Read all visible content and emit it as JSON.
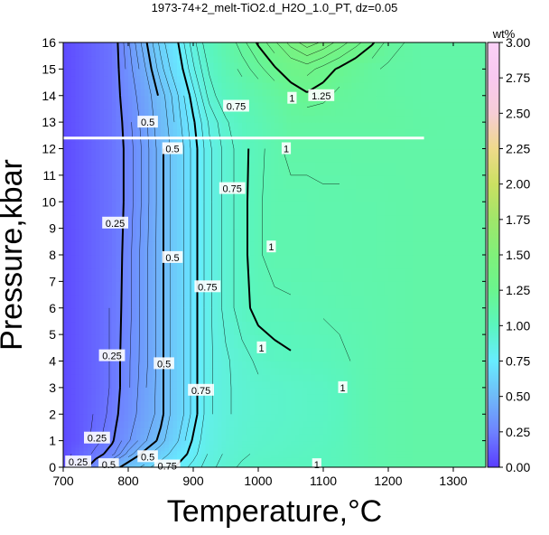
{
  "chart_data": {
    "type": "heatmap",
    "title": "1973-74+2_melt-TiO2.d_H2O_1.0_PT, dz=0.05",
    "xlabel": "Temperature,°C",
    "ylabel": "Pressure,kbar",
    "xlim": [
      700,
      1350
    ],
    "ylim": [
      0,
      16
    ],
    "x_ticks": [
      700,
      800,
      900,
      1000,
      1100,
      1200,
      1300
    ],
    "y_ticks": [
      0,
      1,
      2,
      3,
      4,
      5,
      6,
      7,
      8,
      9,
      10,
      11,
      12,
      13,
      14,
      15,
      16
    ],
    "colorbar": {
      "label": "wt%",
      "range": [
        0,
        3
      ],
      "ticks": [
        "0.00",
        "0.25",
        "0.50",
        "0.75",
        "1.00",
        "1.25",
        "1.50",
        "1.75",
        "2.00",
        "2.25",
        "2.50",
        "2.75",
        "3.00"
      ],
      "stops": [
        {
          "v": 0.0,
          "color": "#5a3dff"
        },
        {
          "v": 0.25,
          "color": "#6e82ff"
        },
        {
          "v": 0.5,
          "color": "#6fbaf8"
        },
        {
          "v": 0.75,
          "color": "#67ecff"
        },
        {
          "v": 1.0,
          "color": "#5af5be"
        },
        {
          "v": 1.25,
          "color": "#6af58e"
        },
        {
          "v": 1.5,
          "color": "#80f07a"
        },
        {
          "v": 1.75,
          "color": "#a0e66a"
        },
        {
          "v": 2.0,
          "color": "#cbe062"
        },
        {
          "v": 2.25,
          "color": "#efd98a"
        },
        {
          "v": 2.5,
          "color": "#f6cdd6"
        },
        {
          "v": 2.75,
          "color": "#f8c8f0"
        },
        {
          "v": 3.0,
          "color": "#fad0f6"
        }
      ]
    },
    "field": {
      "x": [
        700,
        725,
        750,
        775,
        800,
        825,
        850,
        875,
        900,
        925,
        950,
        975,
        1000,
        1025,
        1050,
        1075,
        1100,
        1125,
        1150,
        1175,
        1200,
        1250,
        1300,
        1350
      ],
      "y": [
        0,
        0.5,
        1,
        2,
        3,
        4,
        6,
        8,
        10,
        12,
        13,
        14,
        15,
        16
      ],
      "z": [
        [
          0.05,
          0.2,
          0.3,
          0.45,
          0.55,
          0.62,
          0.7,
          0.76,
          0.82,
          0.88,
          0.93,
          0.96,
          0.98,
          0.99,
          1.0,
          1.0,
          1.0,
          1.02,
          1.05,
          1.08,
          1.1,
          1.12,
          1.12,
          1.12
        ],
        [
          0.05,
          0.15,
          0.22,
          0.28,
          0.42,
          0.52,
          0.6,
          0.7,
          0.78,
          0.86,
          0.91,
          0.94,
          0.96,
          0.97,
          0.98,
          0.99,
          1.0,
          1.02,
          1.05,
          1.08,
          1.1,
          1.12,
          1.12,
          1.12
        ],
        [
          0.05,
          0.1,
          0.18,
          0.24,
          0.34,
          0.44,
          0.52,
          0.64,
          0.76,
          0.85,
          0.9,
          0.93,
          0.95,
          0.96,
          0.97,
          0.98,
          0.99,
          1.01,
          1.05,
          1.08,
          1.1,
          1.12,
          1.12,
          1.12
        ],
        [
          0.05,
          0.1,
          0.16,
          0.22,
          0.3,
          0.4,
          0.48,
          0.6,
          0.72,
          0.84,
          0.89,
          0.92,
          0.94,
          0.95,
          0.96,
          0.97,
          0.98,
          1.0,
          1.05,
          1.08,
          1.1,
          1.12,
          1.12,
          1.12
        ],
        [
          0.05,
          0.1,
          0.15,
          0.21,
          0.29,
          0.39,
          0.48,
          0.6,
          0.72,
          0.84,
          0.89,
          0.92,
          0.94,
          0.95,
          0.96,
          0.97,
          0.98,
          1.0,
          1.05,
          1.08,
          1.1,
          1.12,
          1.12,
          1.12
        ],
        [
          0.05,
          0.1,
          0.15,
          0.21,
          0.29,
          0.38,
          0.48,
          0.6,
          0.72,
          0.84,
          0.89,
          0.93,
          0.96,
          0.98,
          0.99,
          1.0,
          1.01,
          1.03,
          1.06,
          1.08,
          1.1,
          1.12,
          1.12,
          1.12
        ],
        [
          0.05,
          0.1,
          0.15,
          0.21,
          0.28,
          0.38,
          0.48,
          0.6,
          0.72,
          0.84,
          0.92,
          0.98,
          1.02,
          1.03,
          1.04,
          1.05,
          1.06,
          1.07,
          1.08,
          1.09,
          1.1,
          1.12,
          1.12,
          1.12
        ],
        [
          0.05,
          0.1,
          0.15,
          0.2,
          0.28,
          0.38,
          0.48,
          0.6,
          0.72,
          0.84,
          0.92,
          0.98,
          1.04,
          1.08,
          1.08,
          1.08,
          1.09,
          1.09,
          1.1,
          1.1,
          1.11,
          1.12,
          1.12,
          1.12
        ],
        [
          0.05,
          0.1,
          0.15,
          0.2,
          0.27,
          0.37,
          0.48,
          0.6,
          0.72,
          0.84,
          0.92,
          0.98,
          1.04,
          1.08,
          1.08,
          1.08,
          1.09,
          1.09,
          1.1,
          1.1,
          1.11,
          1.12,
          1.12,
          1.12
        ],
        [
          0.05,
          0.1,
          0.15,
          0.2,
          0.27,
          0.37,
          0.48,
          0.6,
          0.72,
          0.84,
          0.92,
          0.98,
          1.03,
          1.08,
          1.12,
          1.12,
          1.12,
          1.12,
          1.12,
          1.12,
          1.12,
          1.12,
          1.12,
          1.12
        ],
        [
          0.05,
          0.1,
          0.15,
          0.2,
          0.28,
          0.38,
          0.5,
          0.62,
          0.74,
          0.86,
          0.94,
          1.0,
          1.05,
          1.1,
          1.15,
          1.15,
          1.15,
          1.15,
          1.15,
          1.15,
          1.15,
          1.13,
          1.12,
          1.12
        ],
        [
          0.05,
          0.1,
          0.15,
          0.2,
          0.3,
          0.4,
          0.52,
          0.64,
          0.78,
          0.92,
          1.0,
          1.05,
          1.1,
          1.15,
          1.2,
          1.24,
          1.22,
          1.18,
          1.16,
          1.15,
          1.14,
          1.12,
          1.12,
          1.12
        ],
        [
          0.05,
          0.1,
          0.15,
          0.2,
          0.32,
          0.44,
          0.58,
          0.7,
          0.84,
          0.96,
          1.05,
          1.12,
          1.18,
          1.24,
          1.3,
          1.32,
          1.28,
          1.24,
          1.2,
          1.16,
          1.14,
          1.12,
          1.12,
          1.12
        ],
        [
          0.05,
          0.1,
          0.15,
          0.2,
          0.34,
          0.48,
          0.62,
          0.74,
          0.88,
          1.0,
          1.1,
          1.18,
          1.26,
          1.34,
          1.42,
          1.48,
          1.44,
          1.38,
          1.32,
          1.26,
          1.18,
          1.12,
          1.12,
          1.12
        ]
      ]
    },
    "levels": [
      0.05,
      0.1,
      0.15,
      0.2,
      0.25,
      0.3,
      0.35,
      0.4,
      0.45,
      0.5,
      0.55,
      0.6,
      0.65,
      0.7,
      0.75,
      0.8,
      0.85,
      0.9,
      0.95,
      1.0,
      1.05,
      1.1,
      1.15,
      1.2,
      1.25,
      1.3,
      1.35,
      1.4,
      1.45
    ],
    "major_levels": [
      0.25,
      0.5,
      0.75,
      1.0,
      1.25
    ],
    "contour_labels": [
      {
        "text": "0.25",
        "x": 780,
        "y": 9.2
      },
      {
        "text": "0.25",
        "x": 775,
        "y": 4.2
      },
      {
        "text": "0.25",
        "x": 752,
        "y": 1.1
      },
      {
        "text": "0.25",
        "x": 723,
        "y": 0.2
      },
      {
        "text": "0.5",
        "x": 830,
        "y": 13.0
      },
      {
        "text": "0.5",
        "x": 868,
        "y": 12.0
      },
      {
        "text": "0.5",
        "x": 868,
        "y": 7.9
      },
      {
        "text": "0.5",
        "x": 855,
        "y": 3.9
      },
      {
        "text": "0.5",
        "x": 830,
        "y": 0.4
      },
      {
        "text": "0.5",
        "x": 770,
        "y": 0.1
      },
      {
        "text": "0.75",
        "x": 966,
        "y": 13.6
      },
      {
        "text": "0.75",
        "x": 960,
        "y": 10.5
      },
      {
        "text": "0.75",
        "x": 922,
        "y": 6.8
      },
      {
        "text": "0.75",
        "x": 912,
        "y": 2.9
      },
      {
        "text": "0.75",
        "x": 860,
        "y": 0.05
      },
      {
        "text": "1",
        "x": 1052,
        "y": 13.9
      },
      {
        "text": "1",
        "x": 1043,
        "y": 12.0
      },
      {
        "text": "1",
        "x": 1020,
        "y": 8.3
      },
      {
        "text": "1",
        "x": 1005,
        "y": 4.5
      },
      {
        "text": "1",
        "x": 1130,
        "y": 3.0
      },
      {
        "text": "1",
        "x": 1090,
        "y": 0.1
      },
      {
        "text": "1.25",
        "x": 1097,
        "y": 14.0
      }
    ],
    "highlight_line": {
      "y": 12.4,
      "x_from": 700,
      "x_to": 1255
    }
  }
}
